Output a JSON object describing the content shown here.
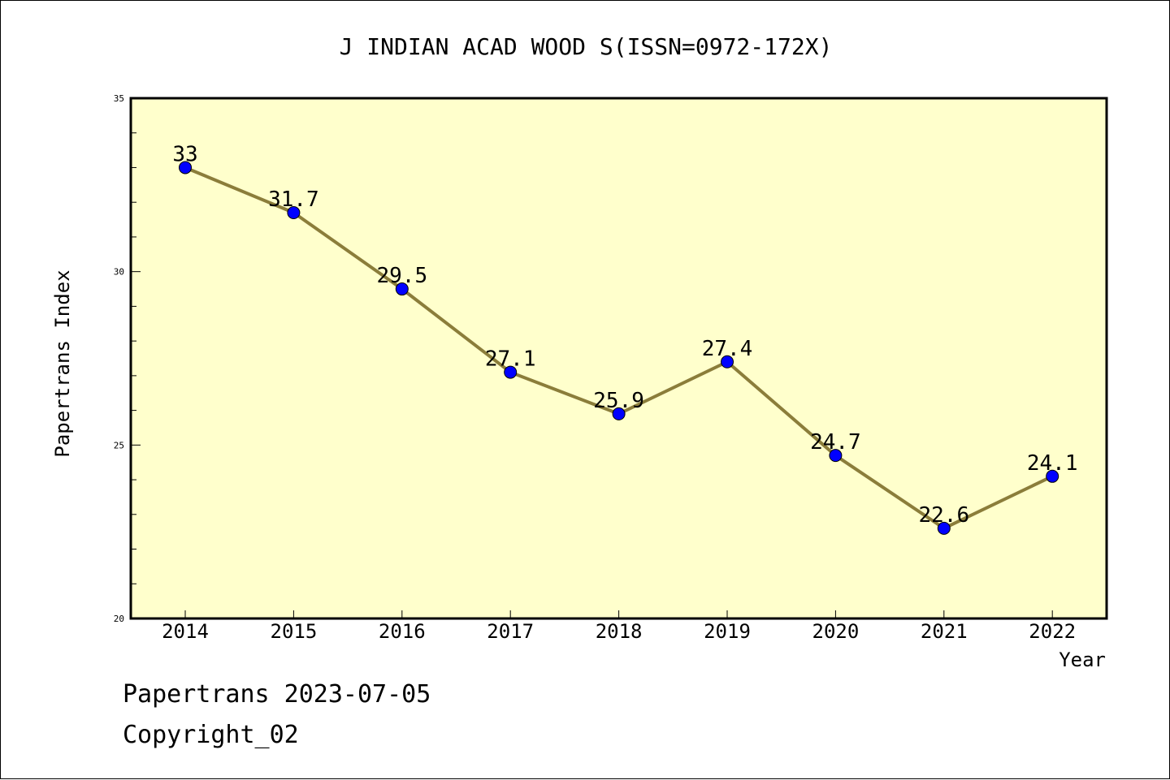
{
  "chart_data": {
    "type": "line",
    "title": "J INDIAN ACAD WOOD S(ISSN=0972-172X)",
    "xlabel": "Year",
    "ylabel": "Papertrans Index",
    "categories": [
      "2014",
      "2015",
      "2016",
      "2017",
      "2018",
      "2019",
      "2020",
      "2021",
      "2022"
    ],
    "values": [
      33,
      31.7,
      29.5,
      27.1,
      25.9,
      27.4,
      24.7,
      22.6,
      24.1
    ],
    "data_labels": [
      "33",
      "31.7",
      "29.5",
      "27.1",
      "25.9",
      "27.4",
      "24.7",
      "22.6",
      "24.1"
    ],
    "ylim": [
      20,
      35
    ],
    "yticks": [
      "20",
      "25",
      "30",
      "35"
    ],
    "grid": false,
    "legend": "none"
  },
  "footer": {
    "line1": "Papertrans 2023-07-05",
    "line2": "Copyright_02"
  },
  "colors": {
    "plot_background": "#ffffcc",
    "line": "#8b7d3a",
    "marker": "#0000ff"
  }
}
